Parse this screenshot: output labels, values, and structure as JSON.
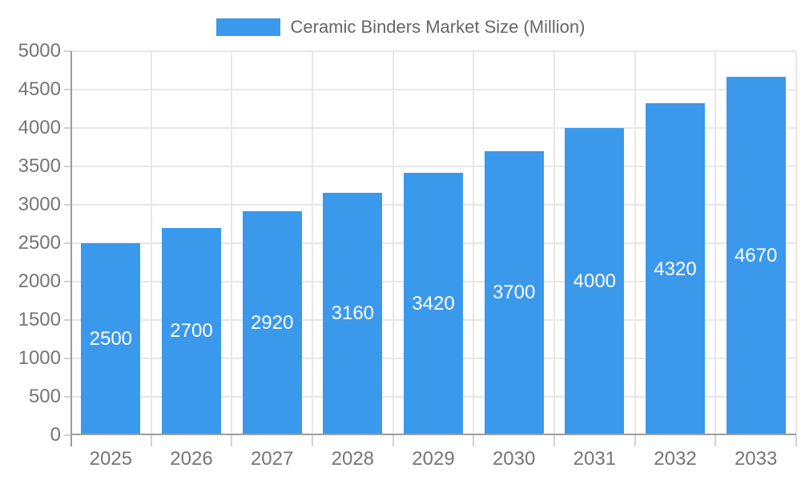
{
  "chart_data": {
    "type": "bar",
    "title": "Ceramic Binders Market Size (Million)",
    "categories": [
      "2025",
      "2026",
      "2027",
      "2028",
      "2029",
      "2030",
      "2031",
      "2032",
      "2033"
    ],
    "series": [
      {
        "name": "Ceramic Binders Market Size (Million)",
        "values": [
          2500,
          2700,
          2920,
          3160,
          3420,
          3700,
          4000,
          4320,
          4670
        ]
      }
    ],
    "data_labels": {
      "position": "inside-center",
      "values": [
        "2500",
        "2700",
        "2920",
        "3160",
        "3420",
        "3700",
        "4000",
        "4320",
        "4670"
      ]
    },
    "xlabel": "",
    "ylabel": "",
    "ylim": [
      0,
      5000
    ],
    "ytick_step": 500,
    "yticks": [
      "0",
      "500",
      "1000",
      "1500",
      "2000",
      "2500",
      "3000",
      "3500",
      "4000",
      "4500",
      "5000"
    ],
    "grid": true,
    "legend_position": "top-center",
    "colors": {
      "bar": "#3B99EC",
      "grid": "#E7E7E7",
      "axis": "#9C9C9C",
      "tick": "#D2D2D2",
      "axis_label_text": "#757575",
      "legend_text": "#666666",
      "data_label_text": "#FFFFFF",
      "background": "#FFFFFF"
    }
  }
}
